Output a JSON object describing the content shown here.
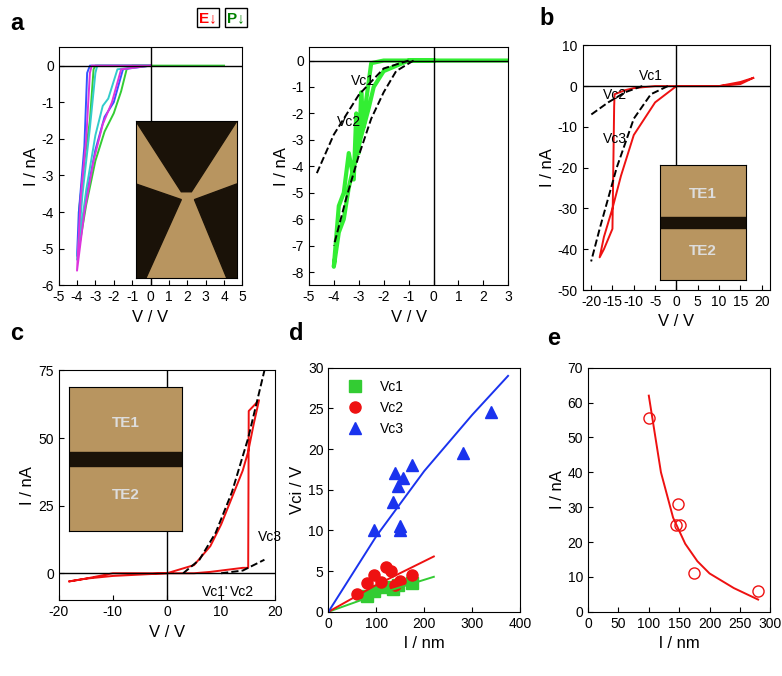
{
  "chart_data": [
    {
      "type": "line",
      "panel_label": "a",
      "x_label": "V / V",
      "y_label": "I / nA",
      "header_labels": [
        {
          "text": "E↓",
          "color": "red"
        },
        {
          "text": "P↓",
          "color": "green"
        }
      ],
      "xlim": [
        -5,
        5
      ],
      "ylim": [
        -6,
        0.5
      ],
      "xticks": [
        -5,
        -4,
        -3,
        -2,
        -1,
        0,
        1,
        2,
        3,
        4,
        5
      ],
      "yticks": [
        -6,
        -5,
        -4,
        -3,
        -2,
        -1,
        0
      ],
      "series": [
        {
          "color": "#33cc33",
          "line_style": "solid",
          "x": [
            0,
            -1,
            -2,
            -3,
            -3.1,
            -3.3,
            -3.6,
            -3.9,
            -3.9,
            -3.5,
            -3,
            -2.5,
            -2,
            -1.6,
            -1.3,
            -1,
            0,
            4
          ],
          "y": [
            0,
            0,
            0,
            0,
            -0.1,
            -1.5,
            -2.6,
            -4.0,
            -5.0,
            -3.8,
            -2.6,
            -1.8,
            -1.3,
            -0.7,
            -0.1,
            0,
            0,
            0
          ]
        },
        {
          "color": "#3355ff",
          "line_style": "solid",
          "x": [
            0,
            -3.3,
            -3.45,
            -3.6,
            -3.9,
            -4,
            -3.5,
            -3,
            -2.5,
            -2,
            -1.5,
            0
          ],
          "y": [
            0,
            0,
            -0.2,
            -2.2,
            -4,
            -5.2,
            -3.6,
            -2.3,
            -1.4,
            -1.0,
            -0.1,
            0
          ]
        },
        {
          "color": "#33cccc",
          "line_style": "solid",
          "x": [
            0,
            -2.9,
            -3.0,
            -3.3,
            -3.7,
            -4,
            -3.5,
            -3,
            -2.6,
            -2.3,
            -1.8,
            0
          ],
          "y": [
            0,
            0,
            -0.2,
            -1.7,
            -3.5,
            -5.3,
            -3.4,
            -1.9,
            -1.1,
            -0.9,
            -0.1,
            0
          ]
        },
        {
          "color": "#dd33dd",
          "line_style": "solid",
          "x": [
            0,
            -3.2,
            -3.3,
            -3.5,
            -3.8,
            -4,
            -3.6,
            -3.1,
            -2.6,
            -2.1,
            -1.6,
            0
          ],
          "y": [
            0,
            0,
            -0.2,
            -2.0,
            -3.6,
            -5.6,
            -4.0,
            -2.6,
            -1.6,
            -1.0,
            -0.1,
            0
          ]
        }
      ]
    },
    {
      "type": "line",
      "x_label": "V / V",
      "y_label": "I / nA",
      "xlim": [
        -5,
        3
      ],
      "ylim": [
        -8.5,
        0.5
      ],
      "xticks": [
        -5,
        -4,
        -3,
        -2,
        -1,
        0,
        1,
        2,
        3
      ],
      "yticks": [
        -8,
        -7,
        -6,
        -5,
        -4,
        -3,
        -2,
        -1,
        0
      ],
      "annotations": [
        "Vc1",
        "Vc2"
      ],
      "series": [
        {
          "color": "#33ee33",
          "line_style": "solid",
          "x": [
            0,
            -1,
            -2,
            -2.5,
            -2.7,
            -2.8,
            -2.9,
            -3.0,
            -3.1,
            -3.2,
            -3.4,
            -3.6,
            -3.8,
            -4.0,
            -3.8,
            -3.6,
            -3.4,
            -3.2,
            -3.0,
            -2.8,
            -2.6,
            -2.4,
            -2.0,
            -1.0,
            0,
            3
          ],
          "y": [
            0,
            0,
            0,
            -0.1,
            -1.5,
            -2.5,
            -1.2,
            -3.5,
            -2.0,
            -4.5,
            -3.5,
            -5,
            -5.5,
            -7.8,
            -6.5,
            -6.0,
            -4.8,
            -4.0,
            -3.2,
            -2.5,
            -1.8,
            -1.0,
            -0.4,
            0,
            0,
            0
          ]
        },
        {
          "color": "#000000",
          "line_style": "dashed",
          "x": [
            -1,
            -2,
            -3,
            -4,
            -4.7
          ],
          "y": [
            0,
            -0.3,
            -1.3,
            -2.8,
            -4.3
          ]
        },
        {
          "color": "#000000",
          "line_style": "dashed",
          "x": [
            -0.8,
            -1.5,
            -2,
            -2.5,
            -3,
            -3.5,
            -4
          ],
          "y": [
            0,
            -0.4,
            -1.2,
            -2.2,
            -3.6,
            -5.2,
            -7.0
          ]
        }
      ]
    },
    {
      "type": "line",
      "panel_label": "b",
      "x_label": "V / V",
      "y_label": "I / nA",
      "inset_labels": [
        "TE1",
        "TE2"
      ],
      "xlim": [
        -22,
        22
      ],
      "ylim": [
        -50,
        10
      ],
      "xticks": [
        -20,
        -15,
        -10,
        -5,
        0,
        5,
        10,
        15,
        20
      ],
      "yticks": [
        -50,
        -40,
        -30,
        -20,
        -10,
        0,
        10
      ],
      "annotations": [
        "Vc1",
        "Vc2",
        "Vc3"
      ],
      "series": [
        {
          "color": "#ee1111",
          "line_style": "solid",
          "x": [
            18,
            15,
            10,
            0,
            -5,
            -10,
            -12,
            -14.5,
            -14.6,
            -15,
            -17,
            -18,
            -17,
            -15,
            -13,
            -10,
            -5,
            0,
            10,
            15,
            18
          ],
          "y": [
            2,
            1,
            0,
            0,
            0,
            -0.5,
            -1,
            -2,
            -5,
            -35,
            -40,
            -42,
            -37,
            -30,
            -22,
            -12,
            -4,
            0,
            0,
            0.5,
            2
          ]
        },
        {
          "color": "#000000",
          "line_style": "dashed",
          "x": [
            -2,
            -6,
            -10,
            -14,
            -18,
            -20
          ],
          "y": [
            0,
            -2,
            -8,
            -20,
            -35,
            -43
          ]
        },
        {
          "color": "#000000",
          "line_style": "dashed",
          "x": [
            -8,
            -12,
            -16,
            -20
          ],
          "y": [
            0,
            -1.5,
            -4,
            -7
          ]
        }
      ]
    },
    {
      "type": "line",
      "panel_label": "c",
      "x_label": "V / V",
      "y_label": "I / nA",
      "inset_labels": [
        "TE1",
        "TE2"
      ],
      "xlim": [
        -20,
        20
      ],
      "ylim": [
        -10,
        75
      ],
      "xticks": [
        -20,
        -10,
        0,
        10,
        20
      ],
      "yticks": [
        0,
        25,
        50,
        75
      ],
      "annotations": [
        "Vc1'",
        "Vc2",
        "Vc3"
      ],
      "series": [
        {
          "color": "#ee1111",
          "line_style": "solid",
          "x": [
            -18,
            -15,
            -10,
            0,
            5,
            8,
            10,
            12,
            14,
            15,
            15.1,
            17,
            16,
            15,
            14,
            12,
            10,
            8,
            5,
            0,
            -10,
            -15,
            -18
          ],
          "y": [
            -3,
            -2,
            -1,
            0,
            0,
            0.5,
            1,
            1.5,
            2,
            2,
            60,
            64,
            55,
            45,
            38,
            28,
            18,
            10,
            3,
            0,
            0,
            -2,
            -3
          ]
        },
        {
          "color": "#000000",
          "line_style": "dashed",
          "x": [
            3,
            6,
            9,
            12,
            15,
            18
          ],
          "y": [
            0,
            5,
            15,
            30,
            50,
            75
          ]
        },
        {
          "color": "#000000",
          "line_style": "dashed",
          "x": [
            10,
            14,
            18
          ],
          "y": [
            0,
            1,
            5
          ]
        }
      ]
    },
    {
      "type": "scatter",
      "panel_label": "d",
      "x_label": "l / nm",
      "y_label": "Vci / V",
      "xlim": [
        0,
        400
      ],
      "ylim": [
        0,
        30
      ],
      "xticks": [
        0,
        100,
        200,
        300,
        400
      ],
      "yticks": [
        0,
        5,
        10,
        15,
        20,
        25,
        30
      ],
      "legend": "upper left",
      "series": [
        {
          "name": "Vc1",
          "type": "scatter",
          "color": "#33cc33",
          "marker": "square",
          "x": [
            80,
            95,
            115,
            135,
            145,
            175
          ],
          "y": [
            2,
            2.5,
            3,
            2.8,
            3.3,
            3.5
          ]
        },
        {
          "name": "Vc2",
          "type": "scatter",
          "color": "#ee1111",
          "marker": "circle",
          "x": [
            60,
            80,
            95,
            110,
            120,
            130,
            140,
            150,
            175
          ],
          "y": [
            2.2,
            3.5,
            4.5,
            3.7,
            5.5,
            5,
            3.3,
            3.8,
            4.5
          ]
        },
        {
          "name": "Vc3",
          "type": "scatter",
          "color": "#1a33ee",
          "marker": "triangle",
          "x": [
            95,
            135,
            140,
            145,
            150,
            150,
            155,
            175,
            280,
            340
          ],
          "y": [
            10,
            13.5,
            17,
            15.5,
            10.5,
            10,
            16.5,
            18,
            19.5,
            24.5
          ]
        },
        {
          "type": "line",
          "color": "#33cc33",
          "line_style": "solid",
          "x": [
            0,
            100,
            220
          ],
          "y": [
            0,
            2.1,
            4.3
          ]
        },
        {
          "type": "line",
          "color": "#ee1111",
          "line_style": "solid",
          "x": [
            0,
            100,
            220
          ],
          "y": [
            0,
            3.3,
            6.8
          ]
        },
        {
          "type": "line",
          "color": "#1a33ee",
          "line_style": "solid",
          "x": [
            0,
            100,
            200,
            300,
            375
          ],
          "y": [
            0,
            9.3,
            17.3,
            24.2,
            29
          ]
        }
      ]
    },
    {
      "type": "scatter",
      "panel_label": "e",
      "x_label": "l / nm",
      "y_label": "I / nA",
      "xlim": [
        0,
        300
      ],
      "ylim": [
        0,
        70
      ],
      "xticks": [
        0,
        50,
        100,
        150,
        200,
        250,
        300
      ],
      "yticks": [
        0,
        10,
        20,
        30,
        40,
        50,
        60,
        70
      ],
      "series": [
        {
          "type": "scatter",
          "color": "#ee1111",
          "marker": "open_circle",
          "x": [
            100,
            145,
            148,
            152,
            175,
            280
          ],
          "y": [
            55.5,
            25,
            31,
            25,
            11,
            6
          ]
        },
        {
          "type": "line",
          "color": "#ee1111",
          "line_style": "solid",
          "x": [
            100,
            120,
            140,
            160,
            180,
            200,
            240,
            280
          ],
          "y": [
            62,
            40,
            27,
            19.5,
            14.5,
            11,
            6.8,
            3.5
          ]
        }
      ]
    }
  ]
}
